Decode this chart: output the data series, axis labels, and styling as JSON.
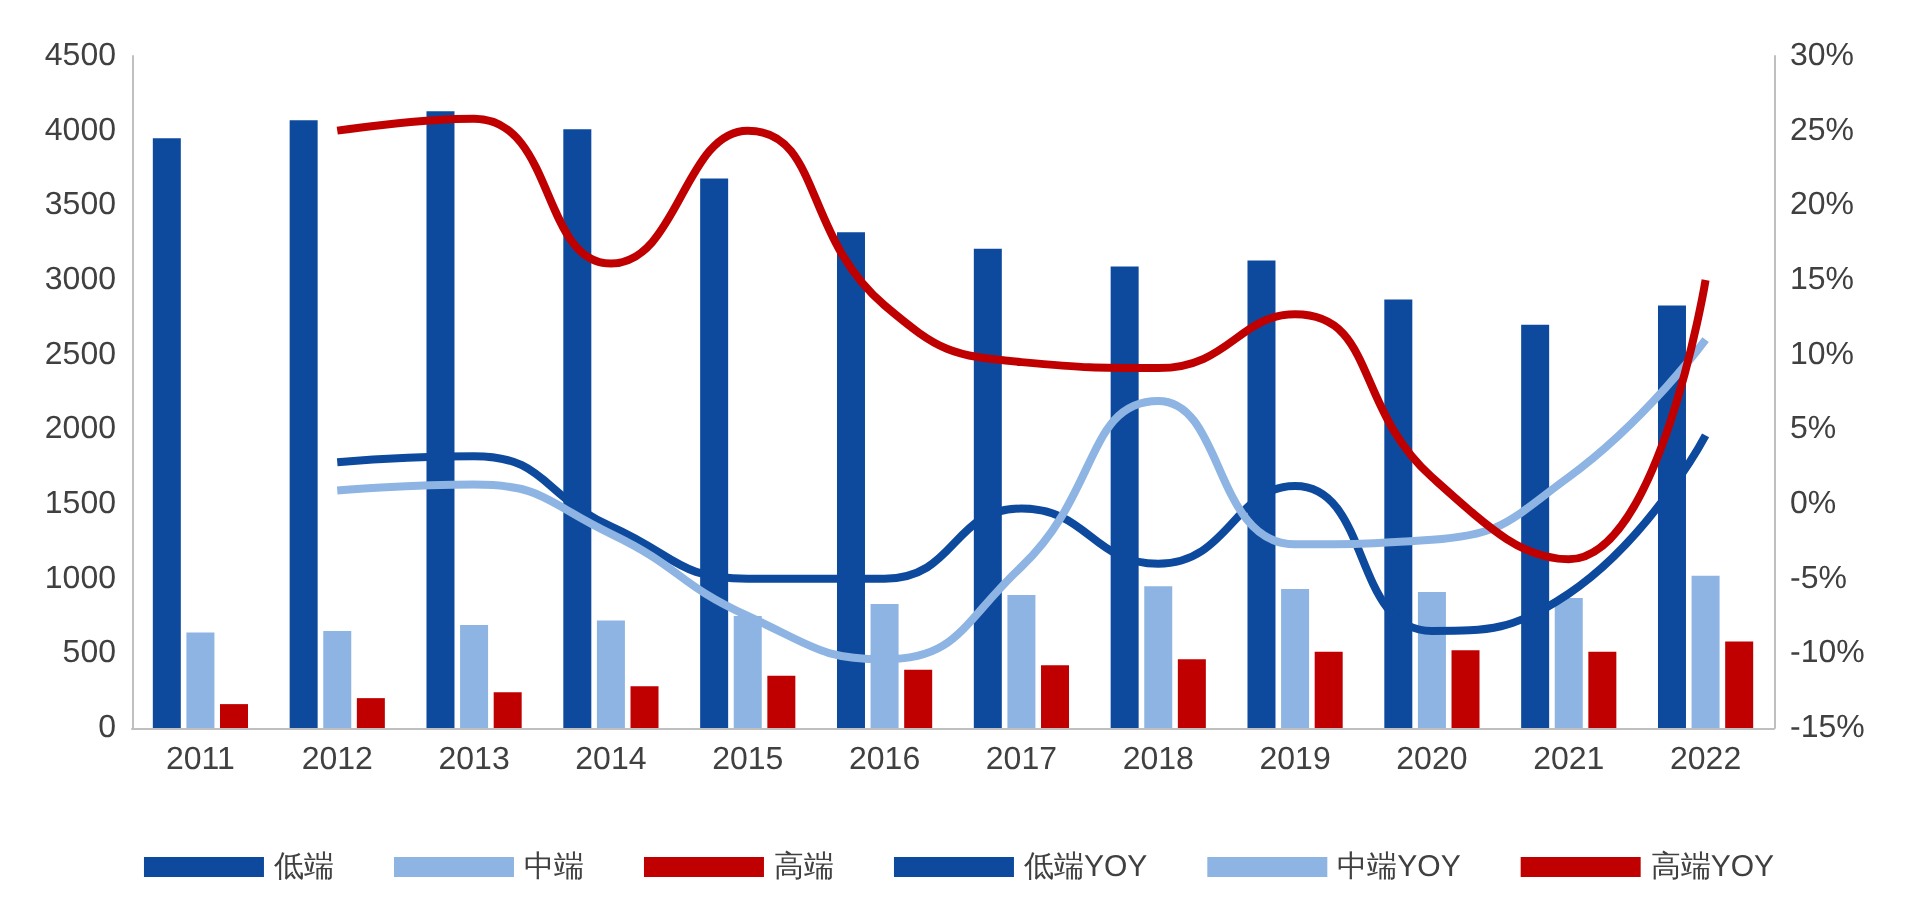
{
  "chart_data": {
    "type": "bar",
    "categories": [
      "2011",
      "2012",
      "2013",
      "2014",
      "2015",
      "2016",
      "2017",
      "2018",
      "2019",
      "2020",
      "2021",
      "2022"
    ],
    "series": [
      {
        "name": "低端",
        "color": "#0d4a9e",
        "values": [
          3950,
          4070,
          4130,
          4010,
          3680,
          3320,
          3210,
          3090,
          3130,
          2870,
          2700,
          2830
        ]
      },
      {
        "name": "中端",
        "color": "#8db4e2",
        "values": [
          640,
          650,
          690,
          720,
          750,
          830,
          890,
          950,
          930,
          910,
          870,
          1020
        ]
      },
      {
        "name": "高端",
        "color": "#c00000",
        "values": [
          160,
          200,
          240,
          280,
          350,
          390,
          420,
          460,
          510,
          520,
          510,
          580
        ]
      },
      {
        "name": "低端YOY",
        "type": "line",
        "axis": "y2",
        "color": "#0d4a9e",
        "values": [
          null,
          2.8,
          3.2,
          -1.5,
          -5,
          -5,
          -0.3,
          -4,
          1.2,
          -8.5,
          -6,
          4.6
        ]
      },
      {
        "name": "中端YOY",
        "type": "line",
        "axis": "y2",
        "color": "#8db4e2",
        "values": [
          null,
          0.9,
          1.3,
          -2,
          -7.5,
          -10.4,
          -4.2,
          6.9,
          -2.7,
          -2.4,
          1.8,
          11
        ]
      },
      {
        "name": "高端YOY",
        "type": "line",
        "axis": "y2",
        "color": "#c00000",
        "values": [
          null,
          25,
          25.8,
          16.1,
          25,
          13.3,
          9.5,
          9.1,
          12.7,
          1.8,
          -3.7,
          15
        ]
      }
    ],
    "ylim": [
      0,
      4500
    ],
    "yticks": [
      0,
      500,
      1000,
      1500,
      2000,
      2500,
      3000,
      3500,
      4000,
      4500
    ],
    "y2lim": [
      -15,
      30
    ],
    "y2ticks": [
      {
        "value": -15,
        "label": "-15%"
      },
      {
        "value": -10,
        "label": "-10%"
      },
      {
        "value": -5,
        "label": "-5%"
      },
      {
        "value": 0,
        "label": "0%"
      },
      {
        "value": 5,
        "label": "5%"
      },
      {
        "value": 10,
        "label": "10%"
      },
      {
        "value": 15,
        "label": "15%"
      },
      {
        "value": 20,
        "label": "20%"
      },
      {
        "value": 25,
        "label": "25%"
      },
      {
        "value": 30,
        "label": "30%"
      }
    ],
    "grid": false,
    "legend": "bottom",
    "marker": "none",
    "line_style": "solid"
  }
}
